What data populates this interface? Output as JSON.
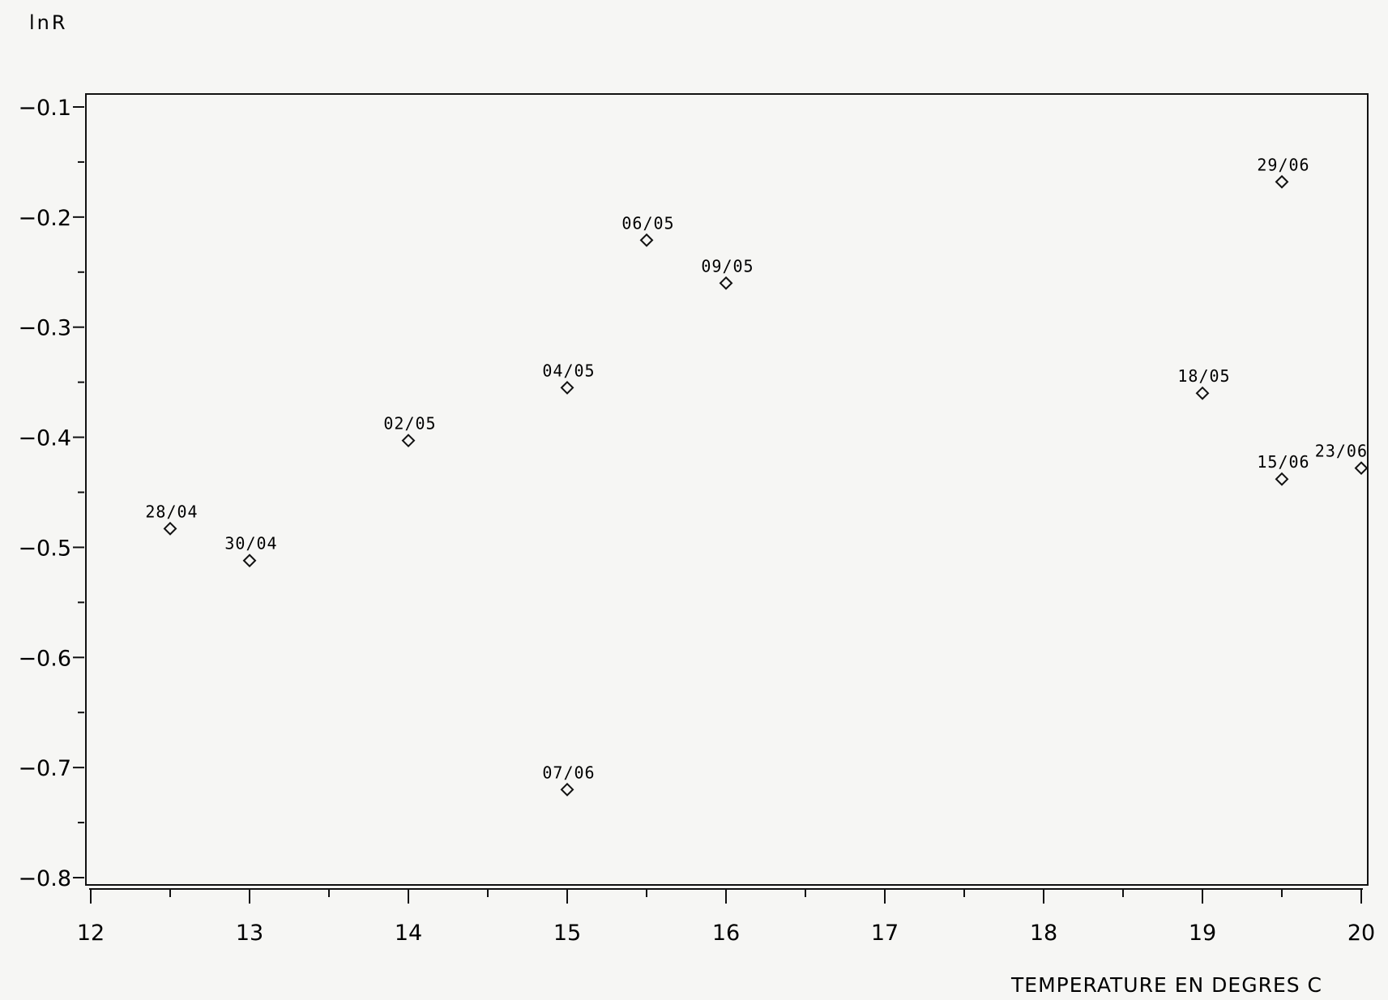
{
  "chart_data": {
    "type": "scatter",
    "title": "",
    "xlabel": "TEMPERATURE EN DEGRES C",
    "ylabel": "lnR",
    "xlim": [
      12,
      20
    ],
    "ylim": [
      -0.8,
      -0.1
    ],
    "x_ticks": [
      "12",
      "13",
      "14",
      "15",
      "16",
      "17",
      "18",
      "19",
      "20"
    ],
    "y_ticks": [
      "-0.1",
      "-0.2",
      "-0.3",
      "-0.4",
      "-0.5",
      "-0.6",
      "-0.7",
      "-0.8"
    ],
    "grid": false,
    "marker": "diamond",
    "points": [
      {
        "x": 12.5,
        "y": -0.483,
        "label": "28/04"
      },
      {
        "x": 13.0,
        "y": -0.512,
        "label": "30/04"
      },
      {
        "x": 14.0,
        "y": -0.403,
        "label": "02/05"
      },
      {
        "x": 15.0,
        "y": -0.355,
        "label": "04/05"
      },
      {
        "x": 15.5,
        "y": -0.221,
        "label": "06/05"
      },
      {
        "x": 16.0,
        "y": -0.26,
        "label": "09/05"
      },
      {
        "x": 19.0,
        "y": -0.36,
        "label": "18/05"
      },
      {
        "x": 15.0,
        "y": -0.72,
        "label": "07/06"
      },
      {
        "x": 19.5,
        "y": -0.438,
        "label": "15/06"
      },
      {
        "x": 20.0,
        "y": -0.428,
        "label": "23/06"
      },
      {
        "x": 19.5,
        "y": -0.168,
        "label": "29/06"
      }
    ]
  }
}
